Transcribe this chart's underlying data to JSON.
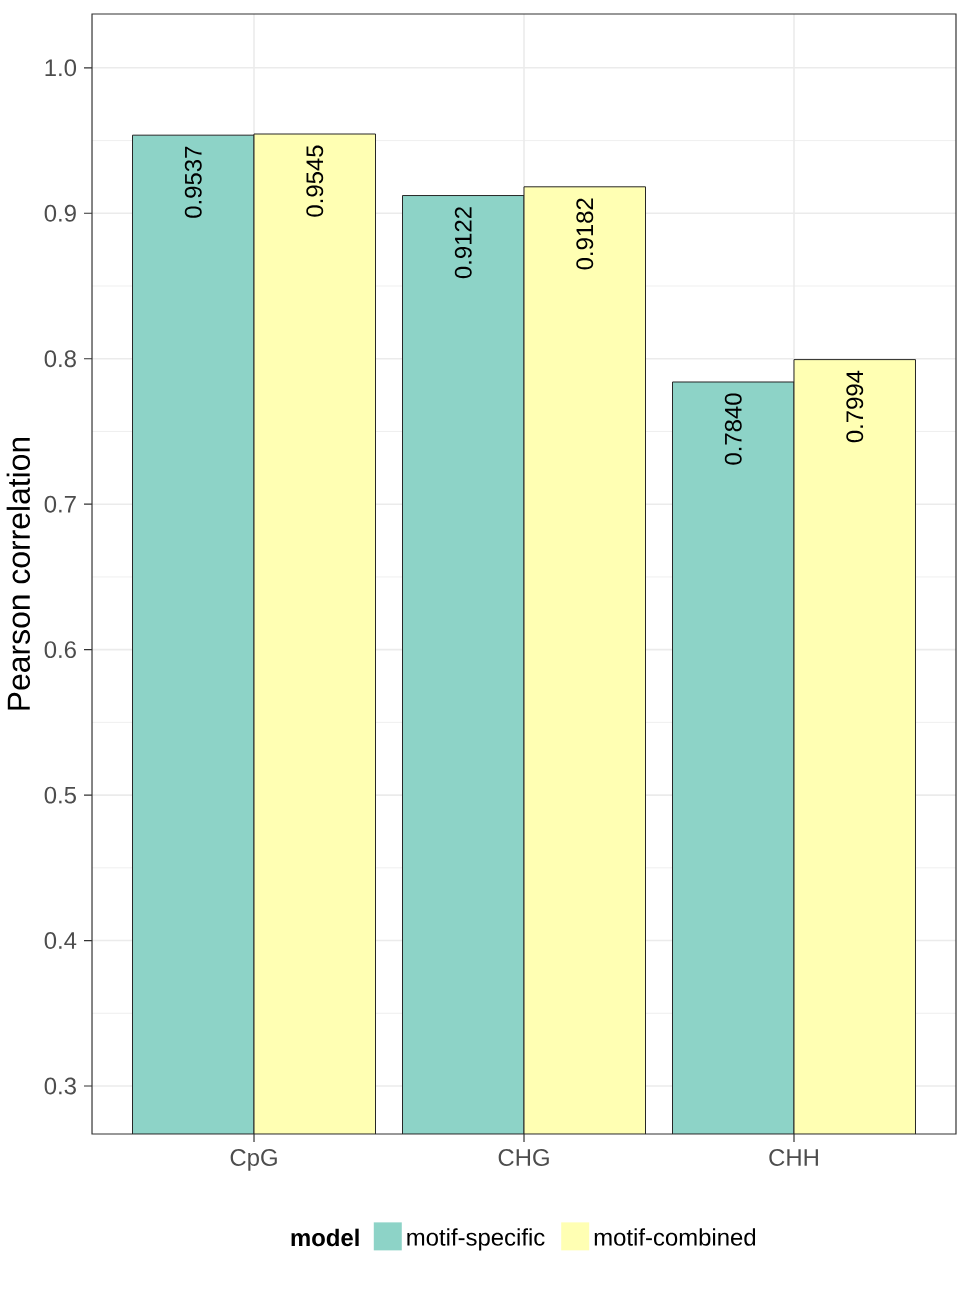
{
  "chart_data": {
    "type": "bar",
    "ylabel": "Pearson correlation",
    "legend_title": "model",
    "categories": [
      "CpG",
      "CHG",
      "CHH"
    ],
    "series": [
      {
        "name": "motif-specific",
        "color": "#8dd3c7",
        "values": [
          0.9537,
          0.9122,
          0.784
        ],
        "value_labels": [
          "0.9537",
          "0.9122",
          "0.7840"
        ]
      },
      {
        "name": "motif-combined",
        "color": "#ffffb3",
        "values": [
          0.9545,
          0.9182,
          0.7994
        ],
        "value_labels": [
          "0.9545",
          "0.9182",
          "0.7994"
        ]
      }
    ],
    "ylim": [
      0.267,
      1.037
    ],
    "yticks": [
      0.3,
      0.4,
      0.5,
      0.6,
      0.7,
      0.8,
      0.9,
      {
        "value": 1.0,
        "label": "1.0"
      }
    ],
    "grid": true,
    "legend": "bottom"
  }
}
